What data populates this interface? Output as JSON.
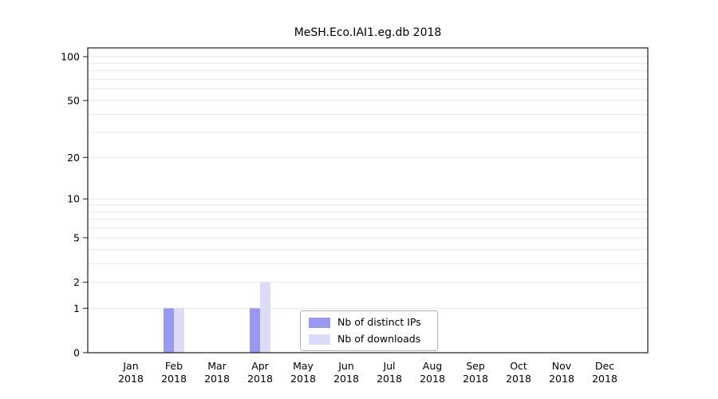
{
  "title": "MeSH.Eco.IAI1.eg.db 2018",
  "chart_data": {
    "type": "bar",
    "title": "MeSH.Eco.IAI1.eg.db 2018",
    "categories": [
      "Jan",
      "Feb",
      "Mar",
      "Apr",
      "May",
      "Jun",
      "Jul",
      "Aug",
      "Sep",
      "Oct",
      "Nov",
      "Dec"
    ],
    "category_year": "2018",
    "series": [
      {
        "name": "Nb of distinct IPs",
        "color": "#9999ee",
        "values": [
          0,
          1,
          0,
          1,
          0,
          0,
          0,
          0,
          0,
          0,
          0,
          0
        ]
      },
      {
        "name": "Nb of downloads",
        "color": "#dcdcf8",
        "values": [
          0,
          1,
          0,
          2,
          0,
          0,
          0,
          0,
          0,
          0,
          0,
          0
        ]
      }
    ],
    "y_ticks": [
      0,
      1,
      2,
      5,
      10,
      20,
      50,
      100
    ],
    "y_scale": "log10(1+x)",
    "ylim": [
      0,
      100
    ],
    "grid": true,
    "legend_position": "inside-bottom-center"
  }
}
